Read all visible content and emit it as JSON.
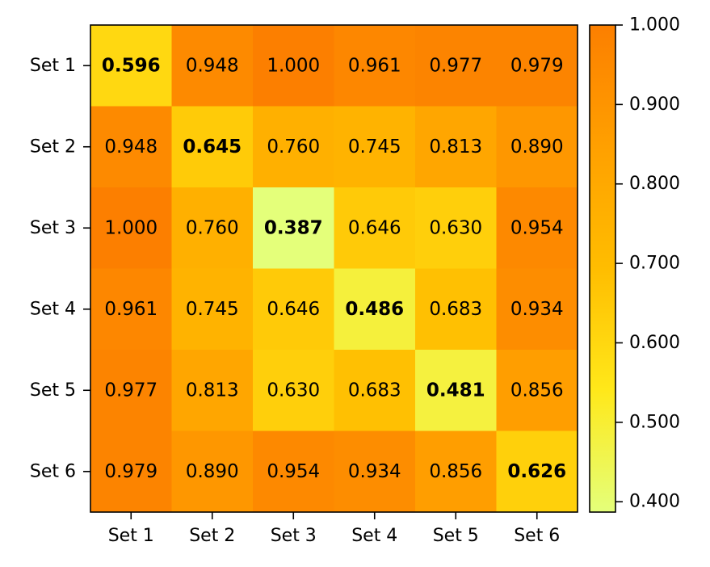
{
  "chart_data": {
    "type": "heatmap",
    "title": "",
    "xlabel": "",
    "ylabel": "",
    "x_categories": [
      "Set 1",
      "Set 2",
      "Set 3",
      "Set 4",
      "Set 5",
      "Set 6"
    ],
    "y_categories": [
      "Set 1",
      "Set 2",
      "Set 3",
      "Set 4",
      "Set 5",
      "Set 6"
    ],
    "values": [
      [
        0.596,
        0.948,
        1.0,
        0.961,
        0.977,
        0.979
      ],
      [
        0.948,
        0.645,
        0.76,
        0.745,
        0.813,
        0.89
      ],
      [
        1.0,
        0.76,
        0.387,
        0.646,
        0.63,
        0.954
      ],
      [
        0.961,
        0.745,
        0.646,
        0.486,
        0.683,
        0.934
      ],
      [
        0.977,
        0.813,
        0.63,
        0.683,
        0.481,
        0.856
      ],
      [
        0.979,
        0.89,
        0.954,
        0.934,
        0.856,
        0.626
      ]
    ],
    "value_format_decimals": 3,
    "diagonal_bold": true,
    "colormap": "Wistia",
    "colorbar": {
      "vmin": 0.387,
      "vmax": 1.0,
      "ticks": [
        0.4,
        0.5,
        0.6,
        0.7,
        0.8,
        0.9,
        1.0
      ],
      "tick_labels": [
        "0.400",
        "0.500",
        "0.600",
        "0.700",
        "0.800",
        "0.900",
        "1.000"
      ],
      "placement": "right"
    },
    "colors": {
      "stops": [
        "#e4ff7a",
        "#ffe81a",
        "#ffbd00",
        "#ffa000",
        "#fc7f00"
      ],
      "axis": "#000000",
      "text": "#000000"
    },
    "grid": false
  }
}
